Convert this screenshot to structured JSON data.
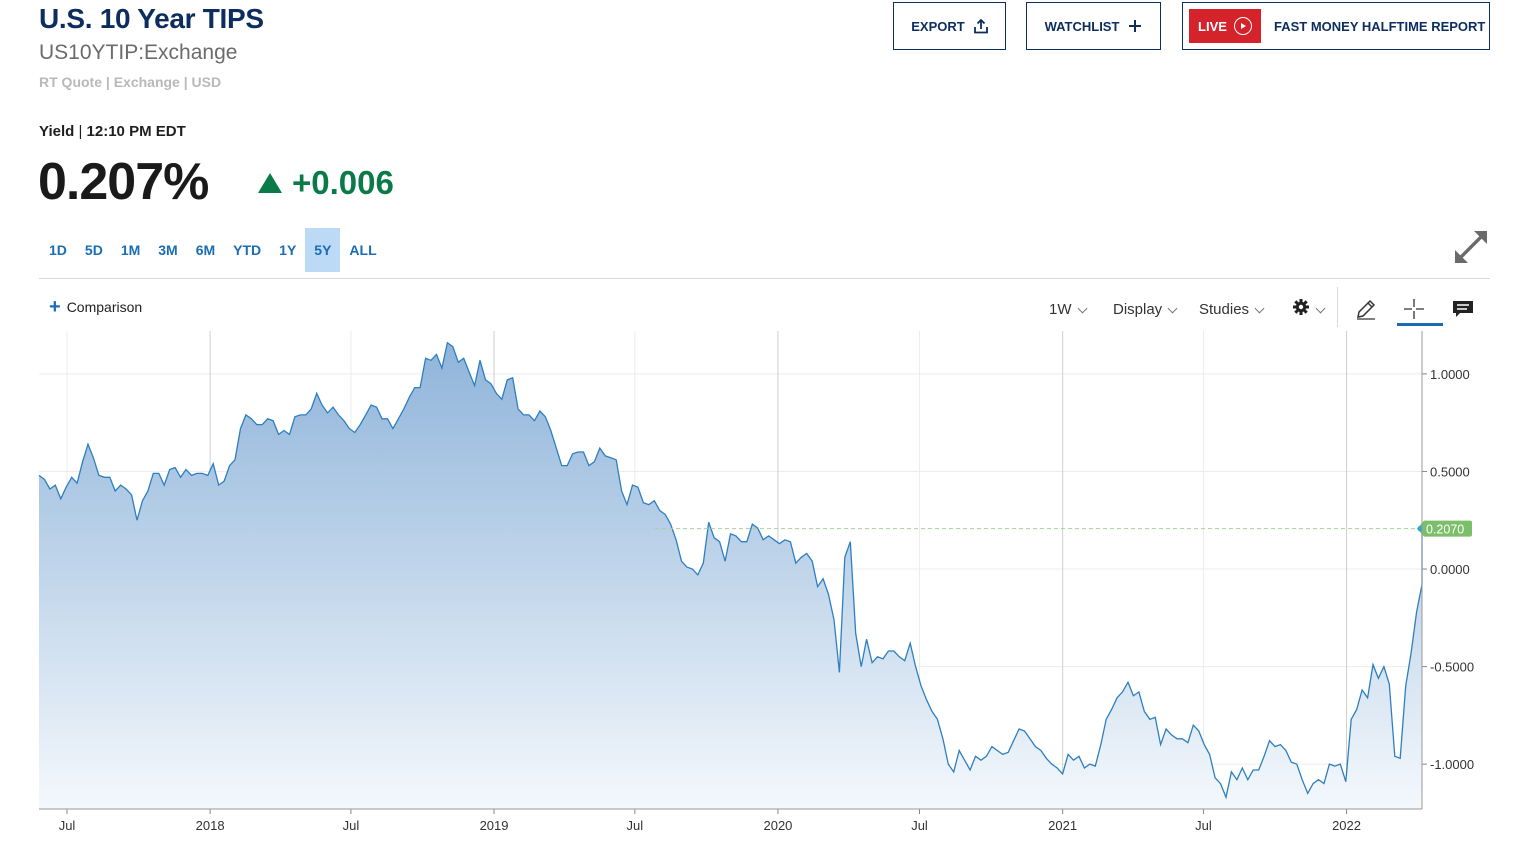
{
  "header": {
    "title": "U.S. 10 Year TIPS",
    "symbol": "US10YTIP:Exchange",
    "quote_meta": "RT Quote | Exchange | USD",
    "export_label": "EXPORT",
    "watchlist_label": "WATCHLIST",
    "live_label": "LIVE",
    "live_show": "FAST MONEY HALFTIME REPORT"
  },
  "quote": {
    "label": "Yield",
    "time": "12:10 PM EDT",
    "price": "0.207%",
    "change": "+0.006",
    "change_color": "#0a7b48"
  },
  "ranges": {
    "items": [
      "1D",
      "5D",
      "1M",
      "3M",
      "6M",
      "YTD",
      "1Y",
      "5Y",
      "ALL"
    ],
    "active": "5Y"
  },
  "toolbar": {
    "comparison": "Comparison",
    "interval": "1W",
    "display": "Display",
    "studies": "Studies",
    "settings_icon": "gear-icon",
    "draw_icon": "pencil-icon",
    "crosshair_icon": "crosshair-icon",
    "events_icon": "comment-icon"
  },
  "chart_data": {
    "type": "area",
    "line_color": "#2e7fbf",
    "fill_color_top": "#8fb4da",
    "fill_color_bottom": "#f4f8fc",
    "last_value_label": "0.2070",
    "last_value_color": "#7cbf6a",
    "x_start": "2017-05-26",
    "x_end": "2022-04-08",
    "ylim": [
      -1.23,
      1.22
    ],
    "y_ticks": [
      {
        "value": 1.0,
        "label": "1.0000"
      },
      {
        "value": 0.5,
        "label": "0.5000"
      },
      {
        "value": 0.0,
        "label": "0.0000"
      },
      {
        "value": -0.5,
        "label": "-0.5000"
      },
      {
        "value": -1.0,
        "label": "-1.0000"
      }
    ],
    "x_ticks": [
      {
        "date": "2017-07-01",
        "label": "Jul"
      },
      {
        "date": "2018-01-01",
        "label": "2018"
      },
      {
        "date": "2018-07-01",
        "label": "Jul"
      },
      {
        "date": "2019-01-01",
        "label": "2019"
      },
      {
        "date": "2019-07-01",
        "label": "Jul"
      },
      {
        "date": "2020-01-01",
        "label": "2020"
      },
      {
        "date": "2020-07-01",
        "label": "Jul"
      },
      {
        "date": "2021-01-01",
        "label": "2021"
      },
      {
        "date": "2021-07-01",
        "label": "Jul"
      },
      {
        "date": "2022-01-01",
        "label": "2022"
      }
    ],
    "grid": true,
    "series": [
      {
        "points": [
          [
            "2017-05-26",
            0.48
          ],
          [
            "2017-06-02",
            0.46
          ],
          [
            "2017-06-09",
            0.41
          ],
          [
            "2017-06-16",
            0.43
          ],
          [
            "2017-06-23",
            0.36
          ],
          [
            "2017-06-30",
            0.42
          ],
          [
            "2017-07-07",
            0.47
          ],
          [
            "2017-07-14",
            0.44
          ],
          [
            "2017-07-21",
            0.55
          ],
          [
            "2017-07-28",
            0.64
          ],
          [
            "2017-08-04",
            0.57
          ],
          [
            "2017-08-11",
            0.48
          ],
          [
            "2017-08-18",
            0.47
          ],
          [
            "2017-08-25",
            0.47
          ],
          [
            "2017-09-01",
            0.4
          ],
          [
            "2017-09-08",
            0.43
          ],
          [
            "2017-09-15",
            0.41
          ],
          [
            "2017-09-22",
            0.38
          ],
          [
            "2017-09-29",
            0.25
          ],
          [
            "2017-10-06",
            0.35
          ],
          [
            "2017-10-13",
            0.4
          ],
          [
            "2017-10-20",
            0.49
          ],
          [
            "2017-10-27",
            0.49
          ],
          [
            "2017-11-03",
            0.43
          ],
          [
            "2017-11-10",
            0.51
          ],
          [
            "2017-11-17",
            0.52
          ],
          [
            "2017-11-24",
            0.47
          ],
          [
            "2017-12-01",
            0.51
          ],
          [
            "2017-12-08",
            0.48
          ],
          [
            "2017-12-15",
            0.49
          ],
          [
            "2017-12-22",
            0.49
          ],
          [
            "2017-12-29",
            0.48
          ],
          [
            "2018-01-05",
            0.54
          ],
          [
            "2018-01-12",
            0.43
          ],
          [
            "2018-01-19",
            0.45
          ],
          [
            "2018-01-26",
            0.53
          ],
          [
            "2018-02-02",
            0.56
          ],
          [
            "2018-02-09",
            0.72
          ],
          [
            "2018-02-16",
            0.79
          ],
          [
            "2018-02-23",
            0.77
          ],
          [
            "2018-03-02",
            0.74
          ],
          [
            "2018-03-09",
            0.74
          ],
          [
            "2018-03-16",
            0.77
          ],
          [
            "2018-03-23",
            0.76
          ],
          [
            "2018-03-30",
            0.69
          ],
          [
            "2018-04-06",
            0.71
          ],
          [
            "2018-04-13",
            0.69
          ],
          [
            "2018-04-20",
            0.78
          ],
          [
            "2018-04-27",
            0.79
          ],
          [
            "2018-05-04",
            0.79
          ],
          [
            "2018-05-11",
            0.82
          ],
          [
            "2018-05-18",
            0.9
          ],
          [
            "2018-05-25",
            0.84
          ],
          [
            "2018-06-01",
            0.8
          ],
          [
            "2018-06-08",
            0.83
          ],
          [
            "2018-06-15",
            0.79
          ],
          [
            "2018-06-22",
            0.76
          ],
          [
            "2018-06-29",
            0.72
          ],
          [
            "2018-07-06",
            0.7
          ],
          [
            "2018-07-13",
            0.74
          ],
          [
            "2018-07-20",
            0.79
          ],
          [
            "2018-07-27",
            0.84
          ],
          [
            "2018-08-03",
            0.83
          ],
          [
            "2018-08-10",
            0.77
          ],
          [
            "2018-08-17",
            0.77
          ],
          [
            "2018-08-24",
            0.72
          ],
          [
            "2018-08-31",
            0.77
          ],
          [
            "2018-09-07",
            0.82
          ],
          [
            "2018-09-14",
            0.88
          ],
          [
            "2018-09-21",
            0.93
          ],
          [
            "2018-09-28",
            0.93
          ],
          [
            "2018-10-05",
            1.08
          ],
          [
            "2018-10-12",
            1.07
          ],
          [
            "2018-10-19",
            1.1
          ],
          [
            "2018-10-26",
            1.03
          ],
          [
            "2018-11-02",
            1.16
          ],
          [
            "2018-11-09",
            1.14
          ],
          [
            "2018-11-16",
            1.06
          ],
          [
            "2018-11-23",
            1.08
          ],
          [
            "2018-11-30",
            1.01
          ],
          [
            "2018-12-07",
            0.94
          ],
          [
            "2018-12-14",
            1.07
          ],
          [
            "2018-12-21",
            0.97
          ],
          [
            "2018-12-28",
            0.95
          ],
          [
            "2019-01-04",
            0.9
          ],
          [
            "2019-01-11",
            0.87
          ],
          [
            "2019-01-18",
            0.97
          ],
          [
            "2019-01-25",
            0.98
          ],
          [
            "2019-02-01",
            0.82
          ],
          [
            "2019-02-08",
            0.79
          ],
          [
            "2019-02-15",
            0.79
          ],
          [
            "2019-02-22",
            0.76
          ],
          [
            "2019-03-01",
            0.81
          ],
          [
            "2019-03-08",
            0.78
          ],
          [
            "2019-03-15",
            0.71
          ],
          [
            "2019-03-22",
            0.62
          ],
          [
            "2019-03-29",
            0.53
          ],
          [
            "2019-04-05",
            0.53
          ],
          [
            "2019-04-12",
            0.59
          ],
          [
            "2019-04-19",
            0.6
          ],
          [
            "2019-04-26",
            0.6
          ],
          [
            "2019-05-03",
            0.53
          ],
          [
            "2019-05-10",
            0.55
          ],
          [
            "2019-05-17",
            0.62
          ],
          [
            "2019-05-24",
            0.58
          ],
          [
            "2019-05-31",
            0.57
          ],
          [
            "2019-06-07",
            0.56
          ],
          [
            "2019-06-14",
            0.4
          ],
          [
            "2019-06-21",
            0.33
          ],
          [
            "2019-06-28",
            0.43
          ],
          [
            "2019-07-05",
            0.42
          ],
          [
            "2019-07-12",
            0.34
          ],
          [
            "2019-07-19",
            0.33
          ],
          [
            "2019-07-26",
            0.35
          ],
          [
            "2019-08-02",
            0.3
          ],
          [
            "2019-08-09",
            0.28
          ],
          [
            "2019-08-16",
            0.23
          ],
          [
            "2019-08-23",
            0.15
          ],
          [
            "2019-08-30",
            0.04
          ],
          [
            "2019-09-06",
            0.01
          ],
          [
            "2019-09-13",
            0.0
          ],
          [
            "2019-09-20",
            -0.03
          ],
          [
            "2019-09-27",
            0.03
          ],
          [
            "2019-10-04",
            0.24
          ],
          [
            "2019-10-11",
            0.16
          ],
          [
            "2019-10-18",
            0.14
          ],
          [
            "2019-10-25",
            0.04
          ],
          [
            "2019-11-01",
            0.18
          ],
          [
            "2019-11-08",
            0.17
          ],
          [
            "2019-11-15",
            0.14
          ],
          [
            "2019-11-22",
            0.14
          ],
          [
            "2019-11-29",
            0.23
          ],
          [
            "2019-12-06",
            0.21
          ],
          [
            "2019-12-13",
            0.15
          ],
          [
            "2019-12-20",
            0.17
          ],
          [
            "2019-12-27",
            0.15
          ],
          [
            "2020-01-03",
            0.13
          ],
          [
            "2020-01-10",
            0.15
          ],
          [
            "2020-01-17",
            0.14
          ],
          [
            "2020-01-24",
            0.03
          ],
          [
            "2020-01-31",
            0.06
          ],
          [
            "2020-02-07",
            0.08
          ],
          [
            "2020-02-14",
            0.04
          ],
          [
            "2020-02-21",
            -0.09
          ],
          [
            "2020-02-28",
            -0.05
          ],
          [
            "2020-03-06",
            -0.13
          ],
          [
            "2020-03-13",
            -0.26
          ],
          [
            "2020-03-20",
            -0.53
          ],
          [
            "2020-03-27",
            0.06
          ],
          [
            "2020-04-03",
            0.14
          ],
          [
            "2020-04-10",
            -0.33
          ],
          [
            "2020-04-17",
            -0.5
          ],
          [
            "2020-04-24",
            -0.36
          ],
          [
            "2020-05-01",
            -0.48
          ],
          [
            "2020-05-08",
            -0.45
          ],
          [
            "2020-05-15",
            -0.46
          ],
          [
            "2020-05-22",
            -0.42
          ],
          [
            "2020-05-29",
            -0.42
          ],
          [
            "2020-06-05",
            -0.45
          ],
          [
            "2020-06-12",
            -0.47
          ],
          [
            "2020-06-19",
            -0.38
          ],
          [
            "2020-06-26",
            -0.5
          ],
          [
            "2020-07-03",
            -0.6
          ],
          [
            "2020-07-10",
            -0.67
          ],
          [
            "2020-07-17",
            -0.73
          ],
          [
            "2020-07-24",
            -0.77
          ],
          [
            "2020-07-31",
            -0.87
          ],
          [
            "2020-08-07",
            -1.0
          ],
          [
            "2020-08-14",
            -1.04
          ],
          [
            "2020-08-21",
            -0.93
          ],
          [
            "2020-08-28",
            -0.98
          ],
          [
            "2020-09-04",
            -1.03
          ],
          [
            "2020-09-11",
            -0.96
          ],
          [
            "2020-09-18",
            -0.98
          ],
          [
            "2020-09-25",
            -0.96
          ],
          [
            "2020-10-02",
            -0.91
          ],
          [
            "2020-10-09",
            -0.93
          ],
          [
            "2020-10-16",
            -0.95
          ],
          [
            "2020-10-23",
            -0.94
          ],
          [
            "2020-10-30",
            -0.88
          ],
          [
            "2020-11-06",
            -0.82
          ],
          [
            "2020-11-13",
            -0.83
          ],
          [
            "2020-11-20",
            -0.87
          ],
          [
            "2020-11-27",
            -0.91
          ],
          [
            "2020-12-04",
            -0.93
          ],
          [
            "2020-12-11",
            -0.97
          ],
          [
            "2020-12-18",
            -1.0
          ],
          [
            "2020-12-25",
            -1.02
          ],
          [
            "2021-01-01",
            -1.05
          ],
          [
            "2021-01-08",
            -0.95
          ],
          [
            "2021-01-15",
            -0.98
          ],
          [
            "2021-01-22",
            -0.96
          ],
          [
            "2021-01-29",
            -1.02
          ],
          [
            "2021-02-05",
            -1.0
          ],
          [
            "2021-02-12",
            -1.01
          ],
          [
            "2021-02-19",
            -0.9
          ],
          [
            "2021-02-26",
            -0.77
          ],
          [
            "2021-03-05",
            -0.72
          ],
          [
            "2021-03-12",
            -0.66
          ],
          [
            "2021-03-19",
            -0.63
          ],
          [
            "2021-03-26",
            -0.58
          ],
          [
            "2021-04-02",
            -0.65
          ],
          [
            "2021-04-09",
            -0.63
          ],
          [
            "2021-04-16",
            -0.73
          ],
          [
            "2021-04-23",
            -0.77
          ],
          [
            "2021-04-30",
            -0.76
          ],
          [
            "2021-05-07",
            -0.9
          ],
          [
            "2021-05-14",
            -0.82
          ],
          [
            "2021-05-21",
            -0.85
          ],
          [
            "2021-05-28",
            -0.87
          ],
          [
            "2021-06-04",
            -0.87
          ],
          [
            "2021-06-11",
            -0.89
          ],
          [
            "2021-06-18",
            -0.8
          ],
          [
            "2021-06-25",
            -0.83
          ],
          [
            "2021-07-02",
            -0.9
          ],
          [
            "2021-07-09",
            -0.95
          ],
          [
            "2021-07-16",
            -1.07
          ],
          [
            "2021-07-23",
            -1.1
          ],
          [
            "2021-07-30",
            -1.17
          ],
          [
            "2021-08-06",
            -1.04
          ],
          [
            "2021-08-13",
            -1.08
          ],
          [
            "2021-08-20",
            -1.02
          ],
          [
            "2021-08-27",
            -1.08
          ],
          [
            "2021-09-03",
            -1.03
          ],
          [
            "2021-09-10",
            -1.03
          ],
          [
            "2021-09-17",
            -0.96
          ],
          [
            "2021-09-24",
            -0.88
          ],
          [
            "2021-10-01",
            -0.91
          ],
          [
            "2021-10-08",
            -0.9
          ],
          [
            "2021-10-15",
            -0.93
          ],
          [
            "2021-10-22",
            -0.99
          ],
          [
            "2021-10-29",
            -1.0
          ],
          [
            "2021-11-05",
            -1.08
          ],
          [
            "2021-11-12",
            -1.15
          ],
          [
            "2021-11-19",
            -1.1
          ],
          [
            "2021-11-26",
            -1.08
          ],
          [
            "2021-12-03",
            -1.1
          ],
          [
            "2021-12-10",
            -1.0
          ],
          [
            "2021-12-17",
            -1.01
          ],
          [
            "2021-12-24",
            -1.0
          ],
          [
            "2021-12-31",
            -1.09
          ],
          [
            "2022-01-07",
            -0.77
          ],
          [
            "2022-01-14",
            -0.72
          ],
          [
            "2022-01-21",
            -0.62
          ],
          [
            "2022-01-28",
            -0.66
          ],
          [
            "2022-02-04",
            -0.49
          ],
          [
            "2022-02-11",
            -0.56
          ],
          [
            "2022-02-18",
            -0.5
          ],
          [
            "2022-02-25",
            -0.59
          ],
          [
            "2022-03-04",
            -0.96
          ],
          [
            "2022-03-11",
            -0.97
          ],
          [
            "2022-03-18",
            -0.6
          ],
          [
            "2022-03-25",
            -0.43
          ],
          [
            "2022-04-01",
            -0.22
          ],
          [
            "2022-04-08",
            -0.08
          ],
          [
            "2022-04-15",
            -0.07
          ],
          [
            "2022-04-22",
            0.01
          ],
          [
            "2022-04-29",
            0.207
          ]
        ]
      }
    ]
  }
}
